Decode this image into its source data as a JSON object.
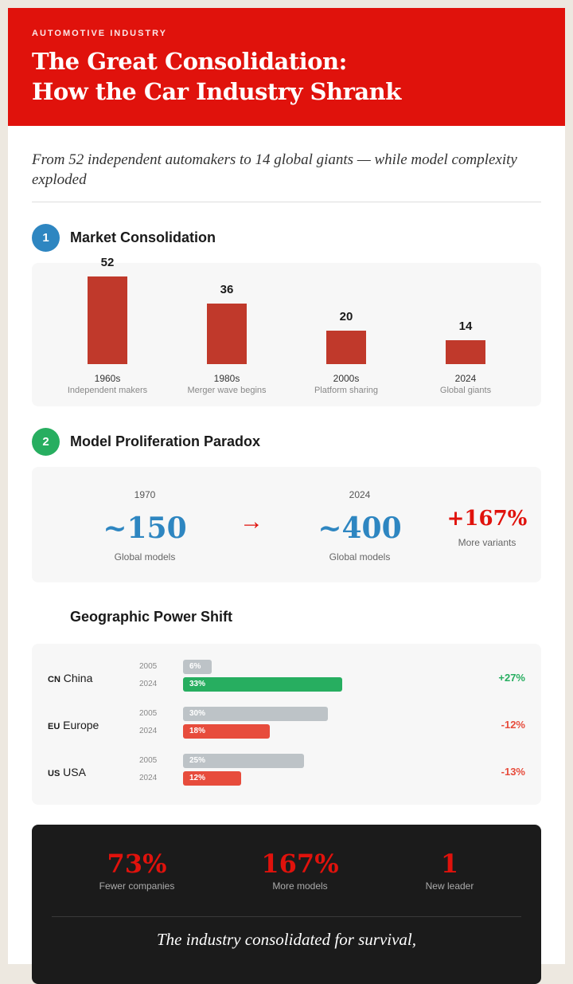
{
  "header": {
    "kicker": "AUTOMOTIVE INDUSTRY",
    "title_line1": "The Great Consolidation:",
    "title_line2": "How the Car Industry Shrank",
    "accent": "#e0120c"
  },
  "subtitle": "From 52 independent automakers to 14 global giants — while model complexity exploded",
  "section1": {
    "number": "1",
    "title": "Market Consolidation",
    "color": "#2e86c1",
    "chart_data": {
      "type": "bar",
      "categories": [
        "1960s",
        "1980s",
        "2000s",
        "2024"
      ],
      "sublabels": [
        "Independent makers",
        "Merger wave begins",
        "Platform sharing",
        "Global giants"
      ],
      "values": [
        52,
        36,
        20,
        14
      ],
      "value_labels": [
        "52",
        "36",
        "20",
        "14"
      ],
      "color": "#c0392b"
    }
  },
  "section2": {
    "number": "2",
    "title": "Model Proliferation Paradox",
    "color": "#27ae60",
    "from": {
      "year": "1970",
      "value": "~150",
      "label": "Global models"
    },
    "arrow": "→",
    "to": {
      "year": "2024",
      "value": "~400",
      "label": "Global models"
    },
    "change": {
      "value": "+167%",
      "label": "More variants"
    }
  },
  "section3": {
    "title": "Geographic Power Shift",
    "chart_data": {
      "type": "bar",
      "orientation": "horizontal",
      "years": [
        "2005",
        "2024"
      ],
      "regions": [
        {
          "code": "CN",
          "name": "China",
          "v2005": 6,
          "v2024": 33,
          "l2005": "6%",
          "l2024": "33%",
          "change": "+27%",
          "color": "#27ae60"
        },
        {
          "code": "EU",
          "name": "Europe",
          "v2005": 30,
          "v2024": 18,
          "l2005": "30%",
          "l2024": "18%",
          "change": "-12%",
          "color": "#e74c3c"
        },
        {
          "code": "US",
          "name": "USA",
          "v2005": 25,
          "v2024": 12,
          "l2005": "25%",
          "l2024": "12%",
          "change": "-13%",
          "color": "#e74c3c"
        }
      ]
    }
  },
  "summary": {
    "stats": [
      {
        "value": "73%",
        "label": "Fewer companies"
      },
      {
        "value": "167%",
        "label": "More models"
      },
      {
        "value": "1",
        "label": "New leader"
      }
    ],
    "quote": "The industry consolidated for survival,"
  }
}
